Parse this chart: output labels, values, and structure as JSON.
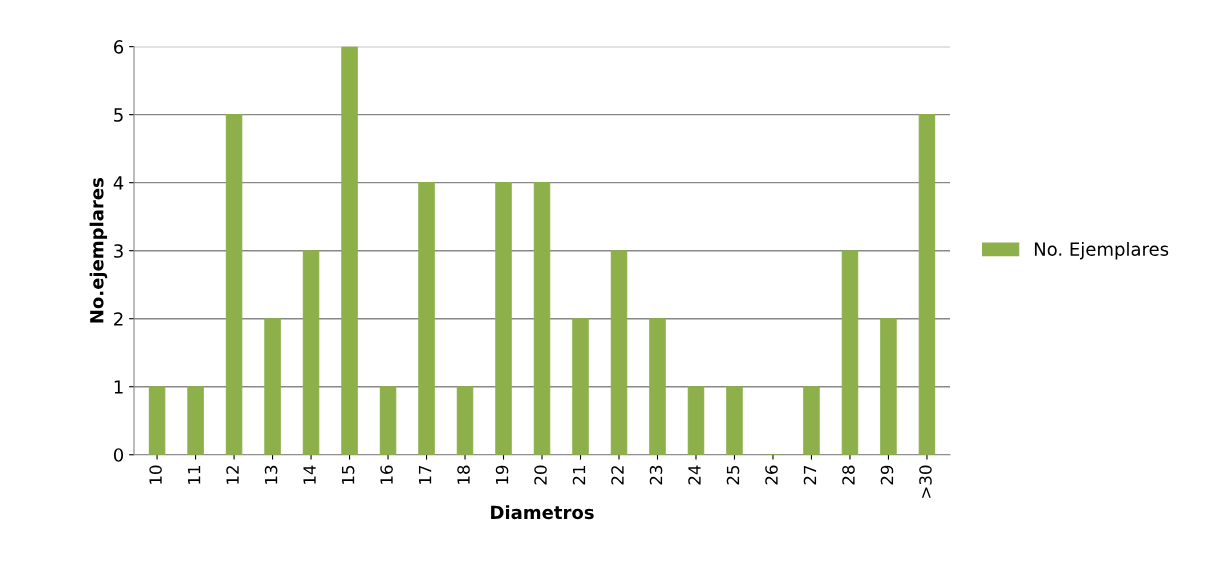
{
  "chart_data": {
    "type": "bar",
    "xlabel": "Diametros",
    "ylabel": "No.ejemplares",
    "categories": [
      "10",
      "11",
      "12",
      "13",
      "14",
      "15",
      "16",
      "17",
      "18",
      "19",
      "20",
      "21",
      "22",
      "23",
      "24",
      "25",
      "26",
      "27",
      "28",
      "29",
      ">30"
    ],
    "series": [
      {
        "name": "No. Ejemplares",
        "color": "#8db04a",
        "values": [
          1,
          1,
          5,
          2,
          3,
          6,
          1,
          4,
          1,
          4,
          4,
          2,
          3,
          2,
          1,
          1,
          0,
          1,
          3,
          2,
          5
        ]
      }
    ],
    "ylim": [
      0,
      6
    ],
    "yticks": [
      0,
      1,
      2,
      3,
      4,
      5,
      6
    ],
    "grid": "y",
    "legend": "right"
  }
}
